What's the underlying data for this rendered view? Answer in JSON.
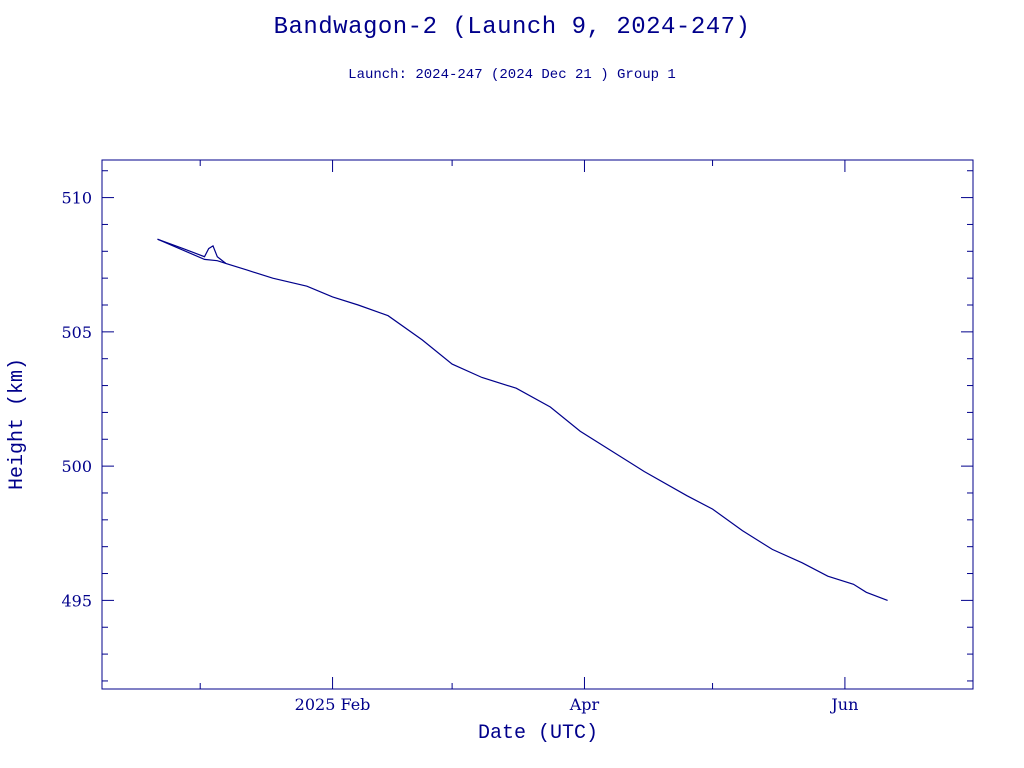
{
  "chart_data": {
    "type": "line",
    "title": "Bandwagon-2 (Launch 9, 2024-247)",
    "subtitle": "Launch: 2024-247  (2024 Dec 21 )  Group 1",
    "xlabel": "Date (UTC)",
    "ylabel": "Height (km)",
    "xlim": [
      "2024-12-09",
      "2025-07-01"
    ],
    "ylim": [
      491.7,
      511.4
    ],
    "x_ticks": [
      {
        "date": "2025-02-01",
        "label": "2025 Feb"
      },
      {
        "date": "2025-04-01",
        "label": "Apr"
      },
      {
        "date": "2025-06-01",
        "label": "Jun"
      }
    ],
    "y_ticks": [
      495,
      500,
      505,
      510
    ],
    "grid": false,
    "color": "#00008b",
    "series": [
      {
        "x": [
          "2024-12-22",
          "2024-12-28",
          "2025-01-02",
          "2025-01-03",
          "2025-01-04",
          "2025-01-05",
          "2025-01-07",
          "2025-01-12",
          "2025-01-18",
          "2025-01-26",
          "2025-02-01",
          "2025-02-07",
          "2025-02-14",
          "2025-02-22",
          "2025-03-01",
          "2025-03-08",
          "2025-03-16",
          "2025-03-24",
          "2025-03-31",
          "2025-04-08",
          "2025-04-15",
          "2025-04-25",
          "2025-05-01",
          "2025-05-08",
          "2025-05-15",
          "2025-05-22",
          "2025-05-28",
          "2025-06-03",
          "2025-06-06",
          "2025-06-11"
        ],
        "values": [
          508.45,
          508.1,
          507.8,
          508.1,
          508.2,
          507.8,
          507.55,
          507.3,
          507.0,
          506.7,
          506.3,
          506.0,
          505.6,
          504.7,
          503.8,
          503.3,
          502.9,
          502.2,
          501.3,
          500.5,
          499.8,
          498.9,
          498.4,
          497.6,
          496.9,
          496.4,
          495.9,
          495.6,
          495.3,
          495.0
        ]
      },
      {
        "x": [
          "2024-12-22",
          "2025-01-02",
          "2025-01-05",
          "2025-01-07"
        ],
        "values": [
          508.45,
          507.7,
          507.65,
          507.55
        ]
      }
    ]
  }
}
